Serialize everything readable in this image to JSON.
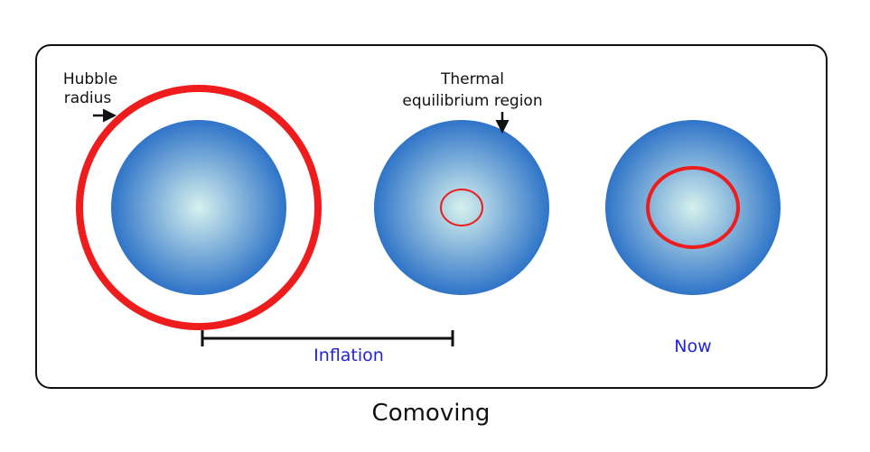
{
  "diagram": {
    "labels": {
      "hubble_radius": [
        "Hubble",
        "radius"
      ],
      "thermal_region": [
        "Thermal",
        "equilibrium region"
      ],
      "inflation": "Inflation",
      "now": "Now",
      "caption": "Comoving"
    },
    "colors": {
      "frame": "#111111",
      "sphere_center": "#d6f1ee",
      "sphere_edge": "#2f74c8",
      "circle": "#ee1c1c",
      "label_text": "#111111",
      "stage_text": "#2222dd"
    }
  }
}
